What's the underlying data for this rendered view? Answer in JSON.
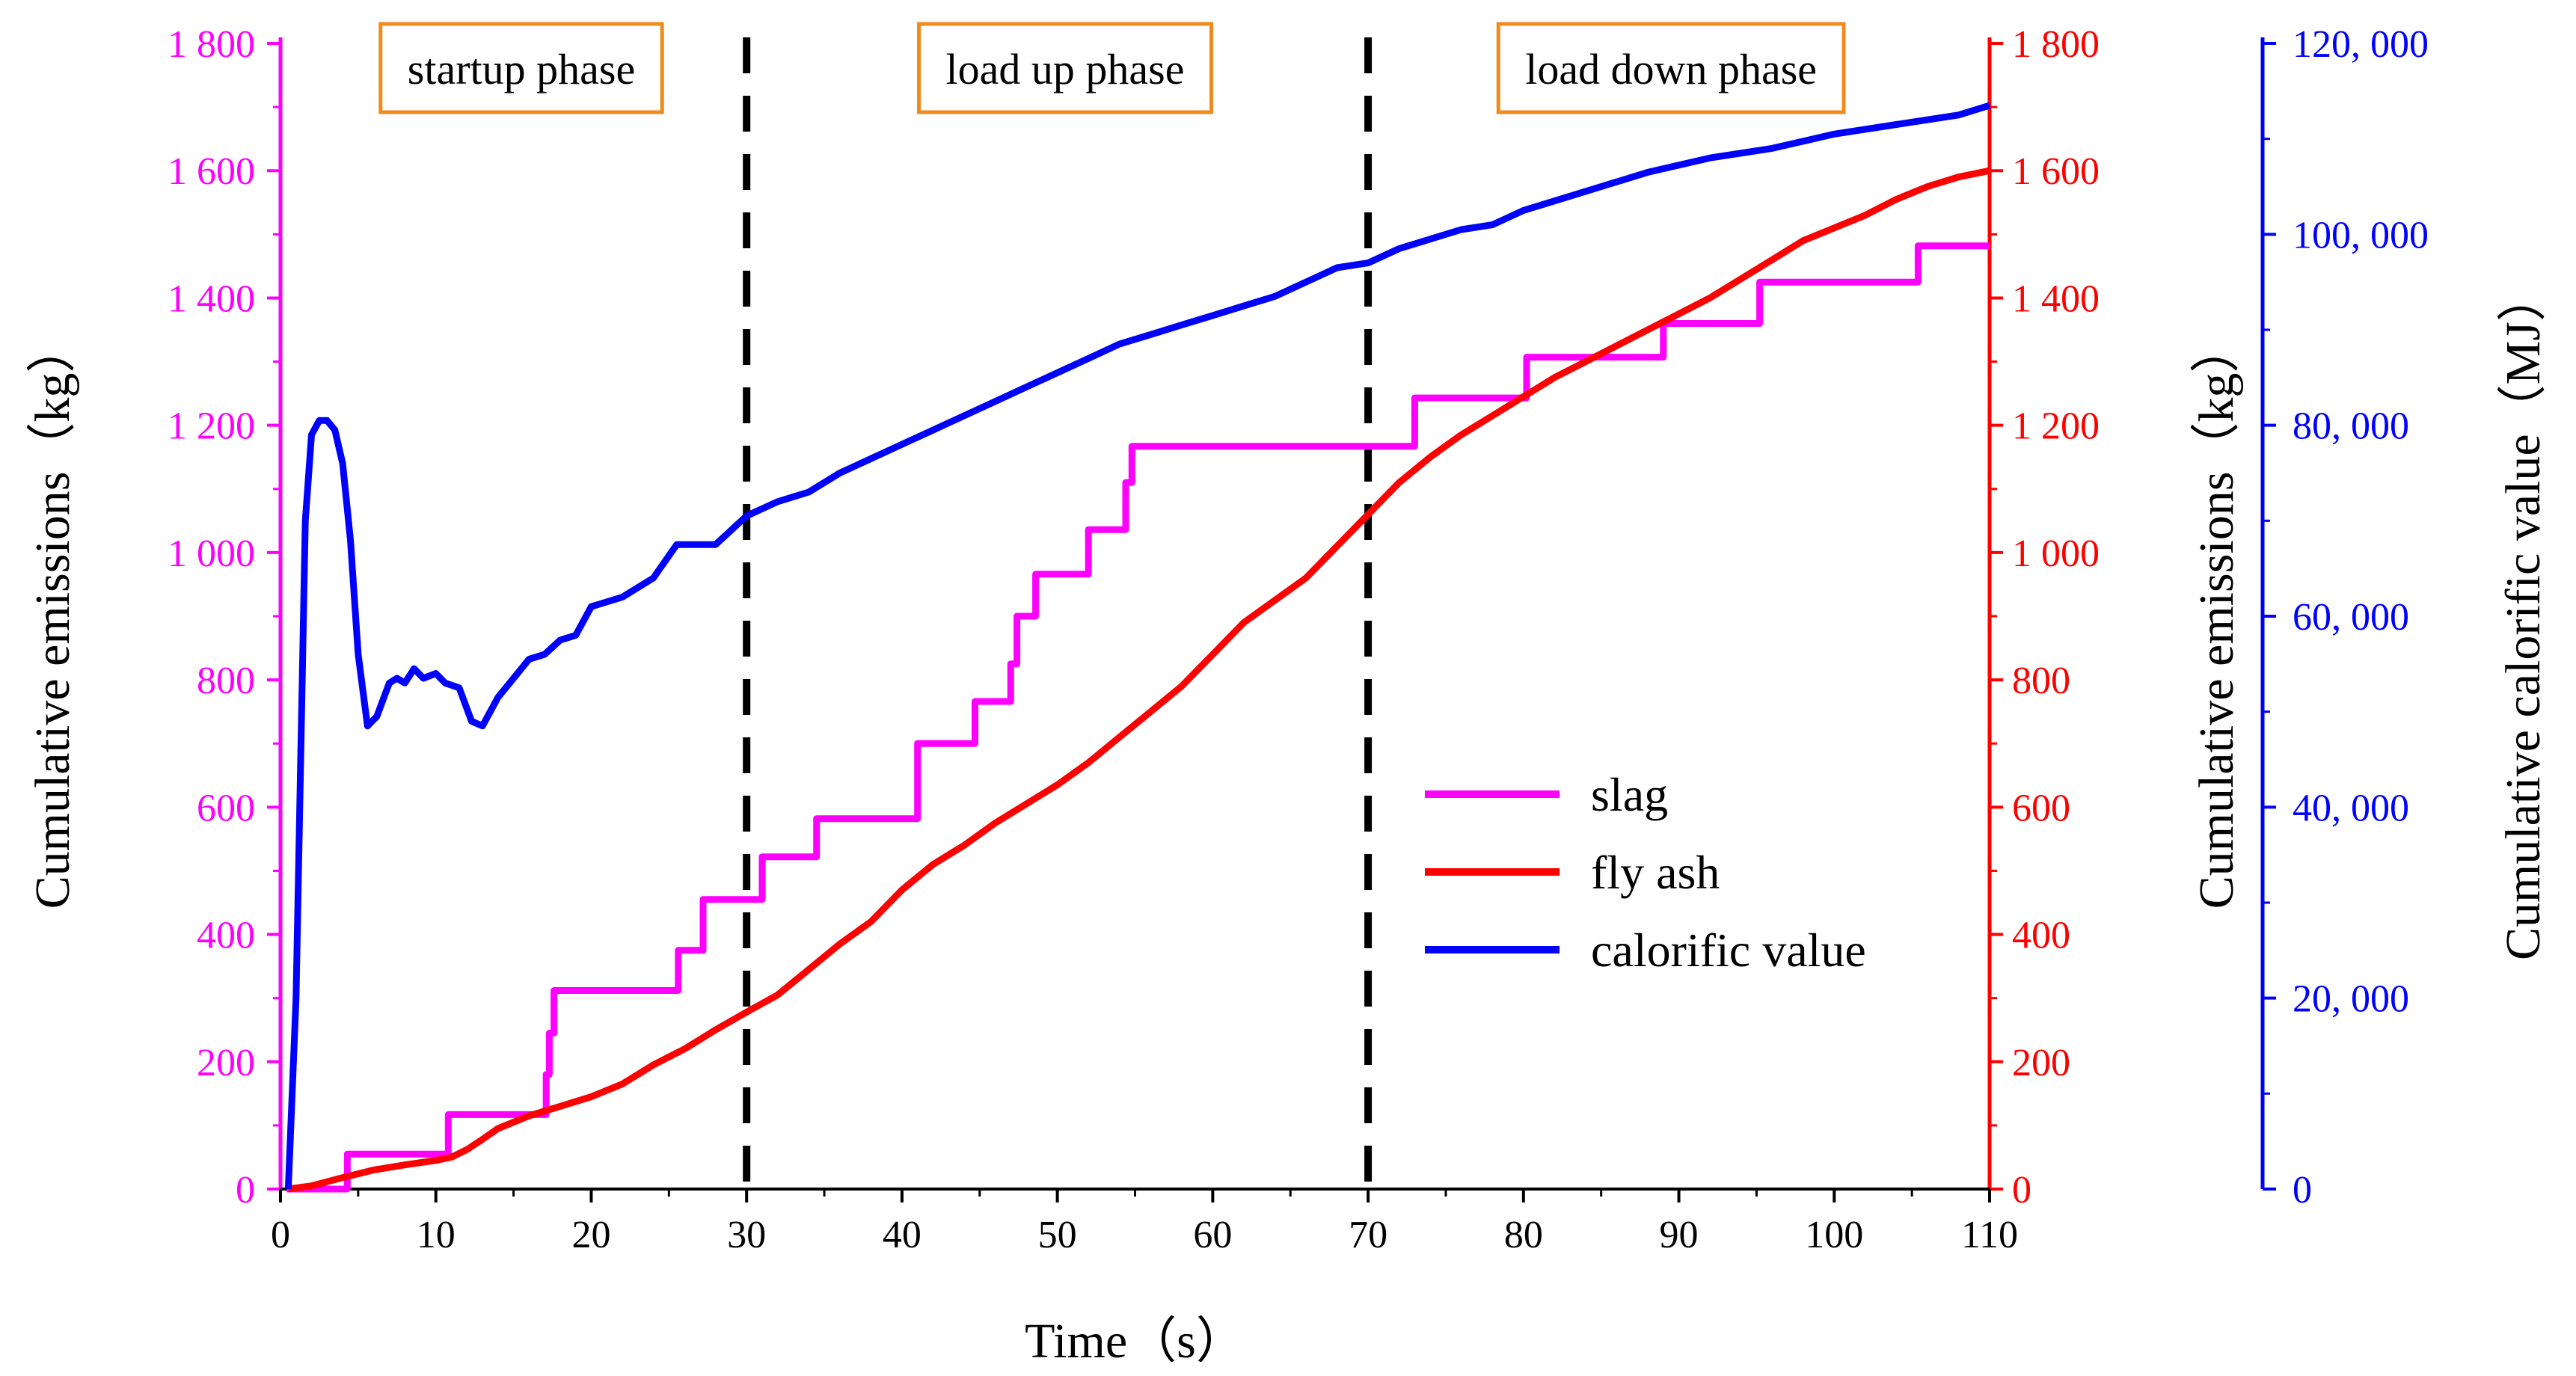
{
  "chart_data": {
    "type": "line",
    "x_range": [
      0,
      110
    ],
    "x_ticks": [
      0,
      10,
      20,
      30,
      40,
      50,
      60,
      70,
      80,
      90,
      100,
      110
    ],
    "xlabel": "Time（s）",
    "left_axis": {
      "label": "Cumulative emissions（kg）",
      "range": [
        0,
        1800
      ],
      "tick_values": [
        0,
        200,
        400,
        600,
        800,
        1000,
        1200,
        1400,
        1600,
        1800
      ],
      "tick_labels": [
        "0",
        "200",
        "400",
        "600",
        "800",
        "1 000",
        "1 200",
        "1 400",
        "1 600",
        "1 800"
      ],
      "color": "#ff00ff"
    },
    "right_axis_1": {
      "label": "Cumulative emissions（kg）",
      "range": [
        0,
        1800
      ],
      "tick_values": [
        0,
        200,
        400,
        600,
        800,
        1000,
        1200,
        1400,
        1600,
        1800
      ],
      "tick_labels": [
        "0",
        "200",
        "400",
        "600",
        "800",
        "1 000",
        "1 200",
        "1 400",
        "1 600",
        "1 800"
      ],
      "color": "#ff0000"
    },
    "right_axis_2": {
      "label": "Cumulative calorific value（MJ）",
      "range": [
        0,
        120000
      ],
      "tick_values": [
        0,
        20000,
        40000,
        60000,
        80000,
        100000,
        120000
      ],
      "tick_labels": [
        "0",
        "20, 000",
        "40, 000",
        "60, 000",
        "80, 000",
        "100, 000",
        "120, 000"
      ],
      "color": "#0000ff"
    },
    "phase_lines": [
      30,
      70
    ],
    "phases": [
      {
        "label": "startup phase",
        "x_center": 15.5,
        "y": 1760
      },
      {
        "label": "load up phase",
        "x_center": 50.5,
        "y": 1760
      },
      {
        "label": "load down phase",
        "x_center": 89.5,
        "y": 1760
      }
    ],
    "legend": [
      {
        "name": "slag",
        "color": "#ff00ff"
      },
      {
        "name": "fly ash",
        "color": "#ff0000"
      },
      {
        "name": "calorific value",
        "color": "#0000ff"
      }
    ],
    "series": [
      {
        "name": "slag",
        "axis": "left",
        "color": "#ff00ff",
        "step": true,
        "points": [
          [
            0.4,
            0
          ],
          [
            4.3,
            0
          ],
          [
            4.3,
            55
          ],
          [
            10.8,
            55
          ],
          [
            10.8,
            117
          ],
          [
            17.1,
            117
          ],
          [
            17.1,
            180
          ],
          [
            17.3,
            180
          ],
          [
            17.3,
            245
          ],
          [
            17.6,
            245
          ],
          [
            17.6,
            312
          ],
          [
            25.6,
            312
          ],
          [
            25.6,
            375
          ],
          [
            27.2,
            375
          ],
          [
            27.2,
            455
          ],
          [
            31.0,
            455
          ],
          [
            31.0,
            522
          ],
          [
            34.5,
            522
          ],
          [
            34.5,
            582
          ],
          [
            41.0,
            582
          ],
          [
            41.0,
            700
          ],
          [
            44.7,
            700
          ],
          [
            44.7,
            766
          ],
          [
            47.0,
            766
          ],
          [
            47.0,
            825
          ],
          [
            47.4,
            825
          ],
          [
            47.4,
            900
          ],
          [
            48.6,
            900
          ],
          [
            48.6,
            966
          ],
          [
            52.0,
            966
          ],
          [
            52.0,
            1036
          ],
          [
            54.4,
            1036
          ],
          [
            54.4,
            1110
          ],
          [
            54.8,
            1110
          ],
          [
            54.8,
            1167
          ],
          [
            73.0,
            1167
          ],
          [
            73.0,
            1243
          ],
          [
            80.2,
            1243
          ],
          [
            80.2,
            1307
          ],
          [
            89.0,
            1307
          ],
          [
            89.0,
            1360
          ],
          [
            95.2,
            1360
          ],
          [
            95.2,
            1425
          ],
          [
            105.4,
            1425
          ],
          [
            105.4,
            1482
          ],
          [
            110,
            1482
          ]
        ]
      },
      {
        "name": "fly ash",
        "axis": "right1",
        "color": "#ff0000",
        "step": false,
        "points": [
          [
            0.5,
            0
          ],
          [
            2,
            5
          ],
          [
            4,
            18
          ],
          [
            6,
            30
          ],
          [
            8,
            38
          ],
          [
            10,
            45
          ],
          [
            11,
            50
          ],
          [
            12,
            62
          ],
          [
            13,
            78
          ],
          [
            14,
            95
          ],
          [
            16,
            115
          ],
          [
            18,
            130
          ],
          [
            20,
            145
          ],
          [
            22,
            165
          ],
          [
            24,
            195
          ],
          [
            26,
            220
          ],
          [
            28,
            250
          ],
          [
            30,
            278
          ],
          [
            32,
            305
          ],
          [
            34,
            345
          ],
          [
            36,
            385
          ],
          [
            38,
            420
          ],
          [
            40,
            470
          ],
          [
            42,
            510
          ],
          [
            44,
            540
          ],
          [
            46,
            575
          ],
          [
            48,
            605
          ],
          [
            50,
            635
          ],
          [
            52,
            670
          ],
          [
            54,
            710
          ],
          [
            56,
            750
          ],
          [
            58,
            790
          ],
          [
            60,
            840
          ],
          [
            62,
            890
          ],
          [
            64,
            925
          ],
          [
            66,
            960
          ],
          [
            68,
            1010
          ],
          [
            70,
            1060
          ],
          [
            72,
            1110
          ],
          [
            74,
            1150
          ],
          [
            76,
            1185
          ],
          [
            78,
            1215
          ],
          [
            80,
            1245
          ],
          [
            82,
            1275
          ],
          [
            84,
            1300
          ],
          [
            86,
            1325
          ],
          [
            88,
            1350
          ],
          [
            90,
            1375
          ],
          [
            92,
            1400
          ],
          [
            94,
            1430
          ],
          [
            96,
            1460
          ],
          [
            98,
            1490
          ],
          [
            100,
            1510
          ],
          [
            102,
            1530
          ],
          [
            104,
            1555
          ],
          [
            106,
            1575
          ],
          [
            108,
            1590
          ],
          [
            110,
            1600
          ]
        ]
      },
      {
        "name": "calorific value",
        "axis": "right2",
        "color": "#0000ff",
        "step": false,
        "points": [
          [
            0.5,
            0
          ],
          [
            1.0,
            20000
          ],
          [
            1.3,
            45000
          ],
          [
            1.6,
            70000
          ],
          [
            2.0,
            79000
          ],
          [
            2.5,
            80500
          ],
          [
            3.0,
            80500
          ],
          [
            3.5,
            79500
          ],
          [
            4.0,
            76000
          ],
          [
            4.5,
            68000
          ],
          [
            5.0,
            56000
          ],
          [
            5.6,
            48500
          ],
          [
            6.2,
            49500
          ],
          [
            7.0,
            53000
          ],
          [
            7.5,
            53500
          ],
          [
            8.0,
            53000
          ],
          [
            8.6,
            54500
          ],
          [
            9.2,
            53500
          ],
          [
            10.0,
            54000
          ],
          [
            10.6,
            53000
          ],
          [
            11.5,
            52500
          ],
          [
            12.3,
            49000
          ],
          [
            13.0,
            48500
          ],
          [
            14.0,
            51500
          ],
          [
            15.0,
            53500
          ],
          [
            16.0,
            55500
          ],
          [
            17.0,
            56000
          ],
          [
            18.0,
            57500
          ],
          [
            19.0,
            58000
          ],
          [
            20.0,
            61000
          ],
          [
            22.0,
            62000
          ],
          [
            24.0,
            64000
          ],
          [
            25.5,
            67500
          ],
          [
            27.0,
            67500
          ],
          [
            28.0,
            67500
          ],
          [
            30.0,
            70500
          ],
          [
            32.0,
            72000
          ],
          [
            34.0,
            73000
          ],
          [
            36.0,
            75000
          ],
          [
            38.0,
            76500
          ],
          [
            40.0,
            78000
          ],
          [
            42.0,
            79500
          ],
          [
            44.0,
            81000
          ],
          [
            46.0,
            82500
          ],
          [
            48.0,
            84000
          ],
          [
            50.0,
            85500
          ],
          [
            52.0,
            87000
          ],
          [
            54.0,
            88500
          ],
          [
            56.0,
            89500
          ],
          [
            58.0,
            90500
          ],
          [
            60.0,
            91500
          ],
          [
            62.0,
            92500
          ],
          [
            64.0,
            93500
          ],
          [
            66.0,
            95000
          ],
          [
            68.0,
            96500
          ],
          [
            70.0,
            97000
          ],
          [
            72.0,
            98500
          ],
          [
            74.0,
            99500
          ],
          [
            76.0,
            100500
          ],
          [
            78.0,
            101000
          ],
          [
            80.0,
            102500
          ],
          [
            84.0,
            104500
          ],
          [
            88.0,
            106500
          ],
          [
            92.0,
            108000
          ],
          [
            96.0,
            109000
          ],
          [
            100.0,
            110500
          ],
          [
            104.0,
            111500
          ],
          [
            108.0,
            112500
          ],
          [
            110.0,
            113500
          ]
        ]
      }
    ]
  }
}
